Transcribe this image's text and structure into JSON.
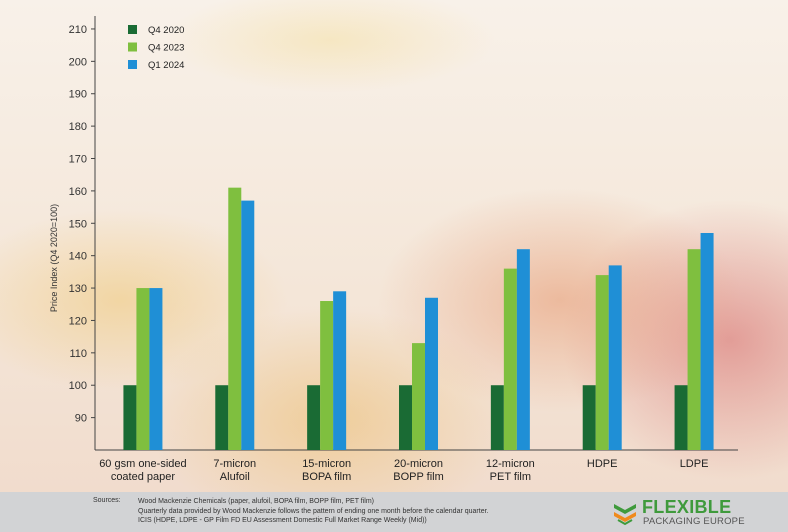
{
  "chart_data": {
    "type": "bar",
    "title": "",
    "xlabel": "",
    "ylabel": "Price Index (Q4 2020=100)",
    "ylim": [
      80,
      214
    ],
    "yticks": [
      90,
      100,
      110,
      120,
      130,
      140,
      150,
      160,
      170,
      180,
      190,
      200,
      210
    ],
    "categories": [
      [
        "60 gsm one-sided",
        "coated paper"
      ],
      [
        "7-micron",
        "Alufoil"
      ],
      [
        "15-micron",
        "BOPA film"
      ],
      [
        "20-micron",
        "BOPP film"
      ],
      [
        "12-micron",
        "PET film"
      ],
      [
        "HDPE"
      ],
      [
        "LDPE"
      ]
    ],
    "series": [
      {
        "name": "Q4 2020",
        "color": "#1a6b34",
        "values": [
          100,
          100,
          100,
          100,
          100,
          100,
          100
        ]
      },
      {
        "name": "Q4 2023",
        "color": "#7fbf3f",
        "values": [
          130,
          161,
          126,
          113,
          136,
          134,
          142
        ]
      },
      {
        "name": "Q1 2024",
        "color": "#1f8fd6",
        "values": [
          130,
          157,
          129,
          127,
          142,
          137,
          147
        ]
      }
    ],
    "legend": "top-left",
    "grid": false
  },
  "footer": {
    "sources_label": "Sources:",
    "lines": [
      "Wood Mackenzie Chemicals (paper, alufoil, BOPA film, BOPP film, PET film)",
      "Quarterly data provided by Wood Mackenzie follows the pattern of ending one month before the calendar quarter.",
      "ICIS (HDPE, LDPE - GP Film FD EU Assessment Domestic Full Market Range Weekly (Mid))"
    ]
  },
  "logo": {
    "title": "FLEXIBLE",
    "subtitle": "PACKAGING EUROPE"
  }
}
